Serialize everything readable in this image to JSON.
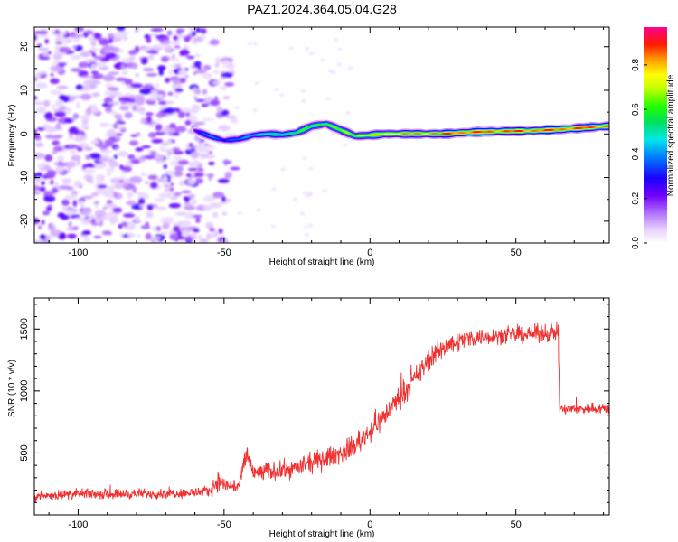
{
  "title": "PAZ1.2024.364.05.04.G28",
  "chart_data": [
    {
      "type": "heatmap",
      "xlabel": "Height of straight line (km)",
      "ylabel": "Frequency (Hz)",
      "xlim": [
        -115,
        82
      ],
      "ylim": [
        -25,
        24.5
      ],
      "xticks": [
        -100,
        -50,
        0,
        50
      ],
      "yticks": [
        -20,
        -10,
        0,
        10,
        20
      ],
      "noise_region_x": [
        -115,
        -46
      ],
      "ridge": [
        {
          "x": -60,
          "y": 0.8,
          "a": 0.25
        },
        {
          "x": -55,
          "y": -0.5,
          "a": 0.45
        },
        {
          "x": -50,
          "y": -1.5,
          "a": 0.35
        },
        {
          "x": -45,
          "y": -1.2,
          "a": 0.4
        },
        {
          "x": -40,
          "y": -0.3,
          "a": 0.5
        },
        {
          "x": -35,
          "y": 0.0,
          "a": 0.55
        },
        {
          "x": -30,
          "y": -0.2,
          "a": 0.6
        },
        {
          "x": -25,
          "y": 0.3,
          "a": 0.65
        },
        {
          "x": -20,
          "y": 1.8,
          "a": 0.65
        },
        {
          "x": -15,
          "y": 2.3,
          "a": 0.7
        },
        {
          "x": -10,
          "y": 0.9,
          "a": 0.7
        },
        {
          "x": -5,
          "y": -0.5,
          "a": 0.75
        },
        {
          "x": 0,
          "y": -0.3,
          "a": 0.8
        },
        {
          "x": 5,
          "y": 0.0,
          "a": 0.85
        },
        {
          "x": 15,
          "y": 0.0,
          "a": 0.9
        },
        {
          "x": 25,
          "y": 0.0,
          "a": 0.95
        },
        {
          "x": 35,
          "y": 0.4,
          "a": 0.95
        },
        {
          "x": 45,
          "y": 0.6,
          "a": 0.95
        },
        {
          "x": 55,
          "y": 0.7,
          "a": 0.95
        },
        {
          "x": 65,
          "y": 1.0,
          "a": 0.95
        },
        {
          "x": 75,
          "y": 1.5,
          "a": 0.95
        },
        {
          "x": 82,
          "y": 1.8,
          "a": 0.95
        }
      ],
      "colorbar": {
        "label": "Normalized spectral amplitude",
        "range": [
          0.0,
          0.97
        ],
        "ticks": [
          0.0,
          0.2,
          0.4,
          0.6,
          0.8
        ],
        "tick_labels": [
          "0.0",
          "0.2",
          "0.4",
          "0.6",
          "0.8"
        ]
      }
    },
    {
      "type": "line",
      "xlabel": "Height of straight line (km)",
      "ylabel": "SNR (10 * v/v)",
      "xlim": [
        -115,
        82
      ],
      "ylim": [
        0,
        1750
      ],
      "xticks": [
        -100,
        -50,
        0,
        50
      ],
      "yticks": [
        500,
        1000,
        1500
      ],
      "color": "#f03030",
      "series": [
        {
          "x": [
            -115,
            -100,
            -80,
            -60,
            -55,
            -52,
            -50,
            -45,
            -42,
            -40,
            -35,
            -30,
            -25,
            -20,
            -15,
            -10,
            -5,
            0,
            5,
            10,
            15,
            20,
            25,
            30,
            35,
            40,
            45,
            50,
            55,
            60,
            64.5,
            65,
            70,
            75,
            82
          ],
          "values": [
            150,
            170,
            170,
            180,
            190,
            280,
            240,
            230,
            500,
            330,
            350,
            360,
            380,
            420,
            460,
            500,
            560,
            680,
            800,
            950,
            1080,
            1250,
            1350,
            1400,
            1430,
            1440,
            1450,
            1450,
            1460,
            1470,
            1480,
            850,
            850,
            860,
            860
          ],
          "noise": [
            60,
            60,
            60,
            60,
            70,
            120,
            90,
            100,
            140,
            120,
            110,
            110,
            110,
            120,
            120,
            130,
            130,
            140,
            140,
            140,
            140,
            140,
            130,
            120,
            110,
            100,
            100,
            100,
            100,
            110,
            110,
            70,
            70,
            70,
            70
          ]
        }
      ]
    }
  ]
}
